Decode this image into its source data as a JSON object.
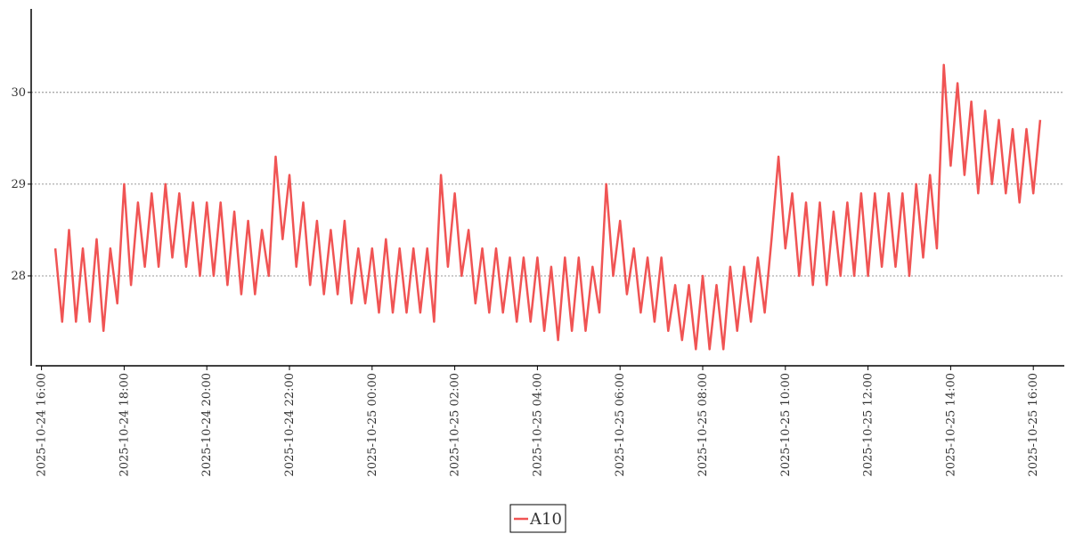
{
  "chart_data": {
    "type": "line",
    "x": [
      "2025-10-24 16:20",
      "2025-10-24 16:30",
      "2025-10-24 16:40",
      "2025-10-24 16:50",
      "2025-10-24 17:00",
      "2025-10-24 17:10",
      "2025-10-24 17:20",
      "2025-10-24 17:30",
      "2025-10-24 17:40",
      "2025-10-24 17:50",
      "2025-10-24 18:00",
      "2025-10-24 18:10",
      "2025-10-24 18:20",
      "2025-10-24 18:30",
      "2025-10-24 18:40",
      "2025-10-24 18:50",
      "2025-10-24 19:00",
      "2025-10-24 19:10",
      "2025-10-24 19:20",
      "2025-10-24 19:30",
      "2025-10-24 19:40",
      "2025-10-24 19:50",
      "2025-10-24 20:00",
      "2025-10-24 20:10",
      "2025-10-24 20:20",
      "2025-10-24 20:30",
      "2025-10-24 20:40",
      "2025-10-24 20:50",
      "2025-10-24 21:00",
      "2025-10-24 21:10",
      "2025-10-24 21:20",
      "2025-10-24 21:30",
      "2025-10-24 21:40",
      "2025-10-24 21:50",
      "2025-10-24 22:00",
      "2025-10-24 22:10",
      "2025-10-24 22:20",
      "2025-10-24 22:30",
      "2025-10-24 22:40",
      "2025-10-24 22:50",
      "2025-10-24 23:00",
      "2025-10-24 23:10",
      "2025-10-24 23:20",
      "2025-10-24 23:30",
      "2025-10-24 23:40",
      "2025-10-24 23:50",
      "2025-10-25 00:00",
      "2025-10-25 00:10",
      "2025-10-25 00:20",
      "2025-10-25 00:30",
      "2025-10-25 00:40",
      "2025-10-25 00:50",
      "2025-10-25 01:00",
      "2025-10-25 01:10",
      "2025-10-25 01:20",
      "2025-10-25 01:30",
      "2025-10-25 01:40",
      "2025-10-25 01:50",
      "2025-10-25 02:00",
      "2025-10-25 02:10",
      "2025-10-25 02:20",
      "2025-10-25 02:30",
      "2025-10-25 02:40",
      "2025-10-25 02:50",
      "2025-10-25 03:00",
      "2025-10-25 03:10",
      "2025-10-25 03:20",
      "2025-10-25 03:30",
      "2025-10-25 03:40",
      "2025-10-25 03:50",
      "2025-10-25 04:00",
      "2025-10-25 04:10",
      "2025-10-25 04:20",
      "2025-10-25 04:30",
      "2025-10-25 04:40",
      "2025-10-25 04:50",
      "2025-10-25 05:00",
      "2025-10-25 05:10",
      "2025-10-25 05:20",
      "2025-10-25 05:30",
      "2025-10-25 05:40",
      "2025-10-25 05:50",
      "2025-10-25 06:00",
      "2025-10-25 06:10",
      "2025-10-25 06:20",
      "2025-10-25 06:30",
      "2025-10-25 06:40",
      "2025-10-25 06:50",
      "2025-10-25 07:00",
      "2025-10-25 07:10",
      "2025-10-25 07:20",
      "2025-10-25 07:30",
      "2025-10-25 07:40",
      "2025-10-25 07:50",
      "2025-10-25 08:00",
      "2025-10-25 08:10",
      "2025-10-25 08:20",
      "2025-10-25 08:30",
      "2025-10-25 08:40",
      "2025-10-25 08:50",
      "2025-10-25 09:00",
      "2025-10-25 09:10",
      "2025-10-25 09:20",
      "2025-10-25 09:30",
      "2025-10-25 09:40",
      "2025-10-25 09:50",
      "2025-10-25 10:00",
      "2025-10-25 10:10",
      "2025-10-25 10:20",
      "2025-10-25 10:30",
      "2025-10-25 10:40",
      "2025-10-25 10:50",
      "2025-10-25 11:00",
      "2025-10-25 11:10",
      "2025-10-25 11:20",
      "2025-10-25 11:30",
      "2025-10-25 11:40",
      "2025-10-25 11:50",
      "2025-10-25 12:00",
      "2025-10-25 12:10",
      "2025-10-25 12:20",
      "2025-10-25 12:30",
      "2025-10-25 12:40",
      "2025-10-25 12:50",
      "2025-10-25 13:00",
      "2025-10-25 13:10",
      "2025-10-25 13:20",
      "2025-10-25 13:30",
      "2025-10-25 13:40",
      "2025-10-25 13:50",
      "2025-10-25 14:00",
      "2025-10-25 14:10",
      "2025-10-25 14:20",
      "2025-10-25 14:30",
      "2025-10-25 14:40",
      "2025-10-25 14:50",
      "2025-10-25 15:00",
      "2025-10-25 15:10",
      "2025-10-25 15:20",
      "2025-10-25 15:30",
      "2025-10-25 15:40",
      "2025-10-25 15:50",
      "2025-10-25 16:00",
      "2025-10-25 16:10"
    ],
    "series": [
      {
        "name": "A10",
        "color": "#f05454",
        "values": [
          28.3,
          27.5,
          28.5,
          27.5,
          28.3,
          27.5,
          28.4,
          27.4,
          28.3,
          27.7,
          29.0,
          27.9,
          28.8,
          28.1,
          28.9,
          28.1,
          29.0,
          28.2,
          28.9,
          28.1,
          28.8,
          28.0,
          28.8,
          28.0,
          28.8,
          27.9,
          28.7,
          27.8,
          28.6,
          27.8,
          28.5,
          28.0,
          29.3,
          28.4,
          29.1,
          28.1,
          28.8,
          27.9,
          28.6,
          27.8,
          28.5,
          27.8,
          28.6,
          27.7,
          28.3,
          27.7,
          28.3,
          27.6,
          28.4,
          27.6,
          28.3,
          27.6,
          28.3,
          27.6,
          28.3,
          27.5,
          29.1,
          28.1,
          28.9,
          28.0,
          28.5,
          27.7,
          28.3,
          27.6,
          28.3,
          27.6,
          28.2,
          27.5,
          28.2,
          27.5,
          28.2,
          27.4,
          28.1,
          27.3,
          28.2,
          27.4,
          28.2,
          27.4,
          28.1,
          27.6,
          29.0,
          28.0,
          28.6,
          27.8,
          28.3,
          27.6,
          28.2,
          27.5,
          28.2,
          27.4,
          27.9,
          27.3,
          27.9,
          27.2,
          28.0,
          27.2,
          27.9,
          27.2,
          28.1,
          27.4,
          28.1,
          27.5,
          28.2,
          27.6,
          28.4,
          29.3,
          28.3,
          28.9,
          28.0,
          28.8,
          27.9,
          28.8,
          27.9,
          28.7,
          28.0,
          28.8,
          28.0,
          28.9,
          28.0,
          28.9,
          28.1,
          28.9,
          28.1,
          28.9,
          28.0,
          29.0,
          28.2,
          29.1,
          28.3,
          30.3,
          29.2,
          30.1,
          29.1,
          29.9,
          28.9,
          29.8,
          29.0,
          29.7,
          28.9,
          29.6,
          28.8,
          29.6,
          28.9,
          29.7
        ]
      }
    ],
    "xlim": [
      "2025-10-24 15:45",
      "2025-10-25 16:45"
    ],
    "xticks": [
      "2025-10-24 16:00",
      "2025-10-24 18:00",
      "2025-10-24 20:00",
      "2025-10-24 22:00",
      "2025-10-25 00:00",
      "2025-10-25 02:00",
      "2025-10-25 04:00",
      "2025-10-25 06:00",
      "2025-10-25 08:00",
      "2025-10-25 10:00",
      "2025-10-25 12:00",
      "2025-10-25 14:00",
      "2025-10-25 16:00"
    ],
    "ylim": [
      27.02,
      30.91
    ],
    "yticks": [
      28,
      29,
      30
    ],
    "grid": true,
    "legend": "bottom"
  }
}
